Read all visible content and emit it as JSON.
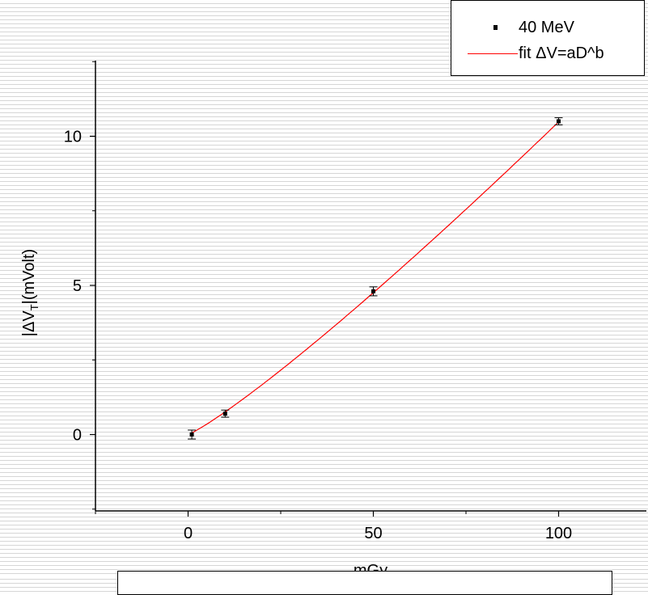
{
  "chart_data": {
    "type": "scatter",
    "xlabel": "mGy",
    "ylabel_parts": [
      "|ΔV",
      "T",
      "|(mVolt)"
    ],
    "xlim": [
      -25,
      124
    ],
    "ylim": [
      -2.5,
      12.5
    ],
    "x_ticks": [
      0,
      50,
      100
    ],
    "x_tick_labels": [
      "0",
      "50",
      "100"
    ],
    "y_ticks": [
      0,
      5,
      10
    ],
    "y_tick_labels": [
      "0",
      "5",
      "10"
    ],
    "x_minor_ticks": [
      -25,
      25,
      75,
      125
    ],
    "y_minor_ticks": [
      -2.5,
      2.5,
      7.5,
      12.5
    ],
    "series": [
      {
        "name": "40 MeV",
        "kind": "points",
        "color": "#000000",
        "x": [
          1,
          10,
          50,
          100
        ],
        "y": [
          0.0,
          0.7,
          4.8,
          10.5
        ],
        "yerr": [
          0.15,
          0.12,
          0.15,
          0.12
        ]
      },
      {
        "name": "fit ΔV=aD^b",
        "kind": "fit",
        "color": "#ff0000",
        "fit_a": 0.055,
        "fit_b": 1.14
      }
    ],
    "grid": false,
    "legend_position": "top-right"
  }
}
